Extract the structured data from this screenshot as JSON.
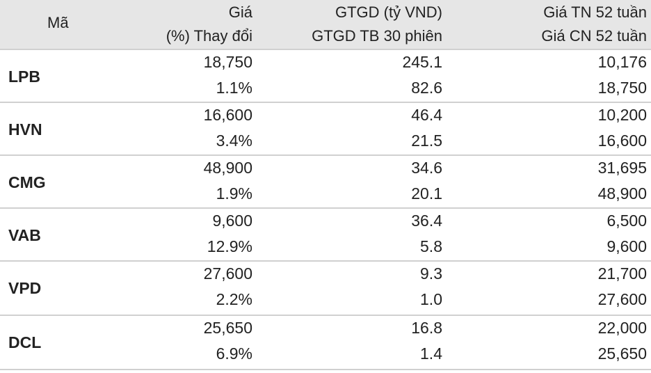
{
  "header": {
    "code": "Mã",
    "col1_line1": "Giá",
    "col1_line2": "(%) Thay đổi",
    "col2_line1": "GTGD (tỷ VND)",
    "col2_line2": "GTGD TB 30 phiên",
    "col3_line1": "Giá TN 52 tuần",
    "col3_line2": "Giá CN 52 tuần"
  },
  "rows": [
    {
      "code": "LPB",
      "price": "18,750",
      "change": "1.1%",
      "value": "245.1",
      "avg_value": "82.6",
      "low52": "10,176",
      "high52": "18,750"
    },
    {
      "code": "HVN",
      "price": "16,600",
      "change": "3.4%",
      "value": "46.4",
      "avg_value": "21.5",
      "low52": "10,200",
      "high52": "16,600"
    },
    {
      "code": "CMG",
      "price": "48,900",
      "change": "1.9%",
      "value": "34.6",
      "avg_value": "20.1",
      "low52": "31,695",
      "high52": "48,900"
    },
    {
      "code": "VAB",
      "price": "9,600",
      "change": "12.9%",
      "value": "36.4",
      "avg_value": "5.8",
      "low52": "6,500",
      "high52": "9,600"
    },
    {
      "code": "VPD",
      "price": "27,600",
      "change": "2.2%",
      "value": "9.3",
      "avg_value": "1.0",
      "low52": "21,700",
      "high52": "27,600"
    },
    {
      "code": "DCL",
      "price": "25,650",
      "change": "6.9%",
      "value": "16.8",
      "avg_value": "1.4",
      "low52": "22,000",
      "high52": "25,650"
    }
  ]
}
